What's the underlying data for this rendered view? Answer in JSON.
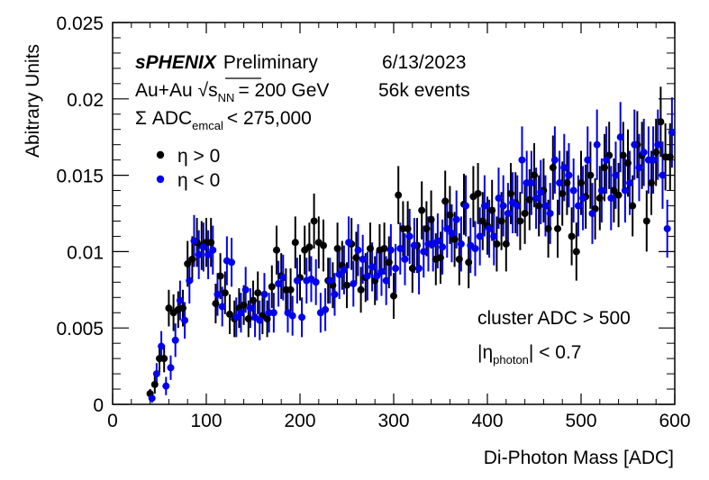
{
  "chart_data": {
    "type": "scatter",
    "title": "",
    "xlabel": "Di-Photon Mass [ADC]",
    "ylabel": "Abitrary Units",
    "xlim": [
      0,
      600
    ],
    "ylim": [
      0,
      0.025
    ],
    "x_ticks": [
      "0",
      "100",
      "200",
      "300",
      "400",
      "500",
      "600"
    ],
    "y_ticks": [
      "0",
      "0.005",
      "0.01",
      "0.015",
      "0.02",
      "0.025"
    ],
    "grid": false,
    "legend_position": "top-left",
    "annotations": {
      "experiment": "sPHENIX",
      "status": "Preliminary",
      "date": "6/13/2023",
      "system": "Au+Au",
      "sqrt_symbol": "√",
      "energy_var": "s",
      "energy_sub": "NN",
      "energy_value": "= 200 GeV",
      "events": "56k events",
      "adc_prefix": "Σ ADC",
      "adc_sub": "emcal",
      "adc_value": "< 275,000",
      "cut1": "cluster ADC > 500",
      "cut2_pre": "|η",
      "cut2_sub": "photon",
      "cut2_post": "| < 0.7"
    },
    "series": [
      {
        "name": "η > 0",
        "color": "#000000",
        "x": [
          40,
          45,
          50,
          55,
          60,
          65,
          70,
          75,
          80,
          85,
          90,
          95,
          100,
          105,
          110,
          115,
          120,
          125,
          130,
          135,
          140,
          145,
          150,
          155,
          160,
          165,
          170,
          175,
          180,
          185,
          190,
          195,
          200,
          205,
          210,
          215,
          220,
          225,
          230,
          235,
          240,
          245,
          250,
          255,
          260,
          265,
          270,
          275,
          280,
          285,
          290,
          295,
          300,
          305,
          310,
          315,
          320,
          325,
          330,
          335,
          340,
          345,
          350,
          355,
          360,
          365,
          370,
          375,
          380,
          385,
          390,
          395,
          400,
          405,
          410,
          415,
          420,
          425,
          430,
          435,
          440,
          445,
          450,
          455,
          460,
          465,
          470,
          475,
          480,
          485,
          490,
          495,
          500,
          505,
          510,
          515,
          520,
          525,
          530,
          535,
          540,
          545,
          550,
          555,
          560,
          565,
          570,
          575,
          580,
          585,
          590,
          595
        ],
        "y": [
          0.0007,
          0.0013,
          0.003,
          0.003,
          0.0063,
          0.006,
          0.0062,
          0.0063,
          0.0092,
          0.0095,
          0.0106,
          0.0104,
          0.0106,
          0.0106,
          0.0066,
          0.0084,
          0.0073,
          0.0059,
          0.0056,
          0.0063,
          0.0065,
          0.0056,
          0.0068,
          0.0073,
          0.0058,
          0.0056,
          0.0077,
          0.0101,
          0.0084,
          0.0075,
          0.0075,
          0.0106,
          0.0083,
          0.0101,
          0.0103,
          0.012,
          0.0106,
          0.0104,
          0.0081,
          0.0078,
          0.0102,
          0.0091,
          0.0078,
          0.0105,
          0.0096,
          0.0075,
          0.0083,
          0.0102,
          0.0081,
          0.0101,
          0.0102,
          0.0093,
          0.0071,
          0.0137,
          0.0115,
          0.0115,
          0.0089,
          0.0104,
          0.0127,
          0.0115,
          0.0121,
          0.0095,
          0.0096,
          0.0133,
          0.0124,
          0.0108,
          0.0095,
          0.0131,
          0.0093,
          0.0136,
          0.0138,
          0.012,
          0.0117,
          0.0127,
          0.0105,
          0.012,
          0.0105,
          0.0138,
          0.0132,
          0.012,
          0.0125,
          0.0134,
          0.015,
          0.013,
          0.014,
          0.0115,
          0.0155,
          0.0115,
          0.0138,
          0.0145,
          0.011,
          0.01,
          0.0145,
          0.0136,
          0.015,
          0.0128,
          0.0135,
          0.0155,
          0.0163,
          0.014,
          0.0137,
          0.0163,
          0.0158,
          0.013,
          0.017,
          0.0163,
          0.012,
          0.0145,
          0.0165,
          0.0185,
          0.0162,
          0.0162
        ],
        "err": [
          0.0003,
          0.0006,
          0.0009,
          0.0009,
          0.0012,
          0.0012,
          0.0012,
          0.0012,
          0.0015,
          0.0015,
          0.0016,
          0.0016,
          0.0016,
          0.0016,
          0.0013,
          0.0015,
          0.0014,
          0.0013,
          0.0012,
          0.0013,
          0.0013,
          0.0012,
          0.0013,
          0.0014,
          0.0012,
          0.0012,
          0.0014,
          0.0016,
          0.0015,
          0.0014,
          0.0014,
          0.0017,
          0.0015,
          0.0016,
          0.0016,
          0.0018,
          0.0017,
          0.0017,
          0.0015,
          0.0015,
          0.0017,
          0.0016,
          0.0015,
          0.0017,
          0.0017,
          0.0015,
          0.0016,
          0.0017,
          0.0016,
          0.0017,
          0.0017,
          0.0017,
          0.0015,
          0.0019,
          0.0018,
          0.0018,
          0.0016,
          0.0018,
          0.0019,
          0.0018,
          0.0019,
          0.0017,
          0.0017,
          0.002,
          0.0019,
          0.0018,
          0.0017,
          0.002,
          0.0017,
          0.002,
          0.002,
          0.0019,
          0.0019,
          0.002,
          0.0018,
          0.0019,
          0.0018,
          0.002,
          0.002,
          0.0019,
          0.002,
          0.002,
          0.0021,
          0.002,
          0.0021,
          0.0019,
          0.0021,
          0.0019,
          0.0021,
          0.0021,
          0.0019,
          0.0019,
          0.0021,
          0.0021,
          0.0022,
          0.002,
          0.0021,
          0.0022,
          0.0022,
          0.0021,
          0.0021,
          0.0022,
          0.0022,
          0.002,
          0.0022,
          0.0022,
          0.002,
          0.0021,
          0.0022,
          0.0023,
          0.0022,
          0.0022
        ]
      },
      {
        "name": "η < 0",
        "color": "#0000ee",
        "x": [
          42,
          47,
          52,
          57,
          62,
          67,
          72,
          77,
          82,
          87,
          92,
          97,
          102,
          107,
          112,
          117,
          122,
          127,
          132,
          137,
          142,
          147,
          152,
          157,
          162,
          167,
          172,
          177,
          182,
          187,
          192,
          197,
          202,
          207,
          212,
          217,
          222,
          227,
          232,
          237,
          242,
          247,
          252,
          257,
          262,
          267,
          272,
          277,
          282,
          287,
          292,
          297,
          302,
          307,
          312,
          317,
          322,
          327,
          332,
          337,
          342,
          347,
          352,
          357,
          362,
          367,
          372,
          377,
          382,
          387,
          392,
          397,
          402,
          407,
          412,
          417,
          422,
          427,
          432,
          437,
          442,
          447,
          452,
          457,
          462,
          467,
          472,
          477,
          482,
          487,
          492,
          497,
          502,
          507,
          512,
          517,
          522,
          527,
          532,
          537,
          542,
          547,
          552,
          557,
          562,
          567,
          572,
          577,
          582,
          587,
          592,
          597
        ],
        "y": [
          0.0004,
          0.002,
          0.0038,
          0.0012,
          0.0024,
          0.0042,
          0.0068,
          0.0055,
          0.0081,
          0.0107,
          0.0098,
          0.0103,
          0.0098,
          0.0101,
          0.0072,
          0.0064,
          0.0094,
          0.0093,
          0.0057,
          0.006,
          0.0075,
          0.0063,
          0.0057,
          0.0055,
          0.0072,
          0.006,
          0.006,
          0.0079,
          0.0083,
          0.006,
          0.0058,
          0.0081,
          0.0057,
          0.0081,
          0.0082,
          0.008,
          0.006,
          0.0062,
          0.0081,
          0.0072,
          0.0085,
          0.0088,
          0.0106,
          0.0079,
          0.0101,
          0.0095,
          0.0084,
          0.009,
          0.0084,
          0.0087,
          0.0081,
          0.0101,
          0.0089,
          0.0102,
          0.0095,
          0.011,
          0.0104,
          0.0089,
          0.01,
          0.0105,
          0.0105,
          0.0107,
          0.0103,
          0.0115,
          0.0112,
          0.0121,
          0.0105,
          0.013,
          0.0104,
          0.0102,
          0.011,
          0.013,
          0.0115,
          0.011,
          0.0135,
          0.013,
          0.0125,
          0.0132,
          0.013,
          0.016,
          0.0145,
          0.0145,
          0.0135,
          0.0139,
          0.013,
          0.0125,
          0.016,
          0.0145,
          0.0155,
          0.015,
          0.014,
          0.013,
          0.0135,
          0.016,
          0.0125,
          0.017,
          0.014,
          0.016,
          0.0135,
          0.015,
          0.0175,
          0.014,
          0.0145,
          0.017,
          0.0155,
          0.0165,
          0.016,
          0.016,
          0.017,
          0.015,
          0.0115,
          0.0178
        ],
        "err": [
          0.0003,
          0.0007,
          0.001,
          0.0006,
          0.0008,
          0.0011,
          0.0013,
          0.0012,
          0.0015,
          0.0017,
          0.0016,
          0.0016,
          0.0016,
          0.0016,
          0.0014,
          0.0013,
          0.0016,
          0.0016,
          0.0013,
          0.0013,
          0.0015,
          0.0013,
          0.0013,
          0.0013,
          0.0014,
          0.0013,
          0.0013,
          0.0015,
          0.0015,
          0.0013,
          0.0013,
          0.0015,
          0.0013,
          0.0015,
          0.0015,
          0.0015,
          0.0013,
          0.0014,
          0.0015,
          0.0014,
          0.0016,
          0.0016,
          0.0017,
          0.0015,
          0.0017,
          0.0016,
          0.0016,
          0.0016,
          0.0016,
          0.0016,
          0.0016,
          0.0017,
          0.0016,
          0.0017,
          0.0017,
          0.0018,
          0.0018,
          0.0017,
          0.0017,
          0.0018,
          0.0018,
          0.0018,
          0.0018,
          0.0019,
          0.0019,
          0.0019,
          0.0018,
          0.002,
          0.0018,
          0.0018,
          0.0019,
          0.002,
          0.0019,
          0.0019,
          0.002,
          0.002,
          0.002,
          0.002,
          0.002,
          0.0022,
          0.0021,
          0.0021,
          0.002,
          0.0021,
          0.002,
          0.002,
          0.0022,
          0.0021,
          0.0022,
          0.0021,
          0.0021,
          0.002,
          0.0021,
          0.0022,
          0.002,
          0.0023,
          0.0021,
          0.0022,
          0.0021,
          0.0022,
          0.0023,
          0.0021,
          0.0021,
          0.0023,
          0.0022,
          0.0022,
          0.0022,
          0.0022,
          0.0023,
          0.0022,
          0.0019,
          0.0023
        ]
      }
    ]
  }
}
